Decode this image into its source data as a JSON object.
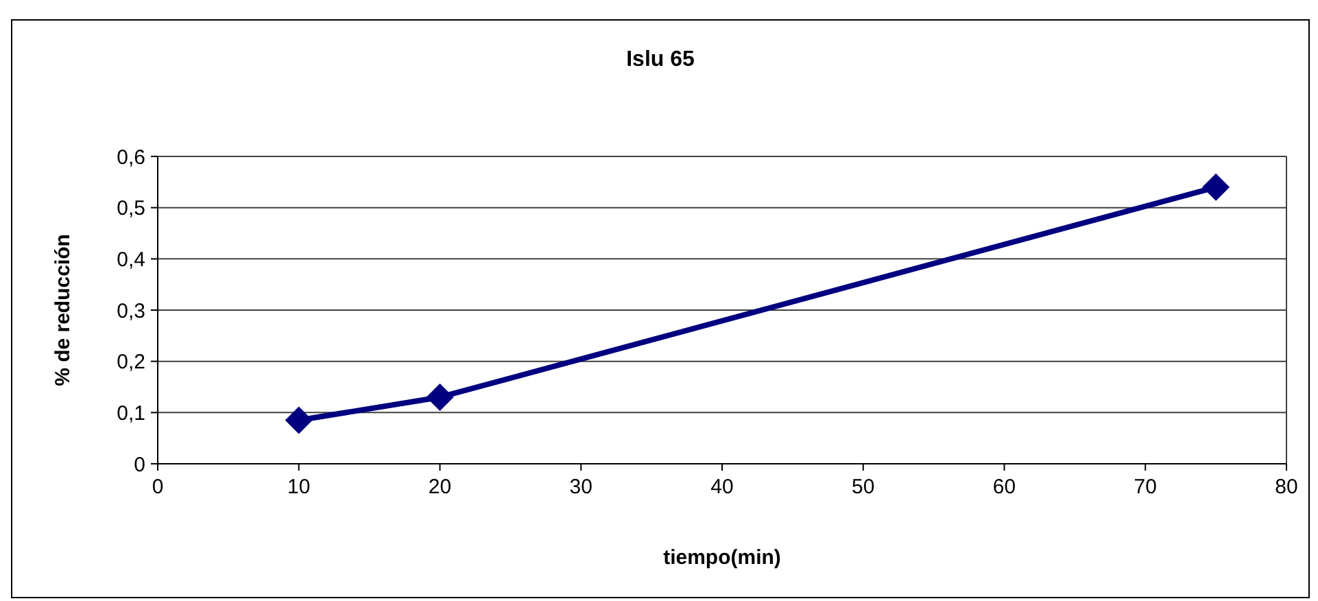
{
  "chart_data": {
    "type": "line",
    "title": "Islu 65",
    "xlabel": "tiempo(min)",
    "ylabel": "% de reducción",
    "x": [
      10,
      20,
      75
    ],
    "series": [
      {
        "color": "#000080",
        "values": [
          0.085,
          0.13,
          0.54
        ]
      }
    ],
    "xlim": [
      0,
      80
    ],
    "xticks": [
      0,
      10,
      20,
      30,
      40,
      50,
      60,
      70,
      80
    ],
    "ylim": [
      0,
      0.6
    ],
    "yticks": [
      {
        "value": 0,
        "label": "0"
      },
      {
        "value": 0.1,
        "label": "0,1"
      },
      {
        "value": 0.2,
        "label": "0,2"
      },
      {
        "value": 0.3,
        "label": "0,3"
      },
      {
        "value": 0.4,
        "label": "0,4"
      },
      {
        "value": 0.5,
        "label": "0,5"
      },
      {
        "value": 0.6,
        "label": "0,6"
      }
    ],
    "grid": "y",
    "marker": "diamond",
    "line_style": "solid"
  }
}
